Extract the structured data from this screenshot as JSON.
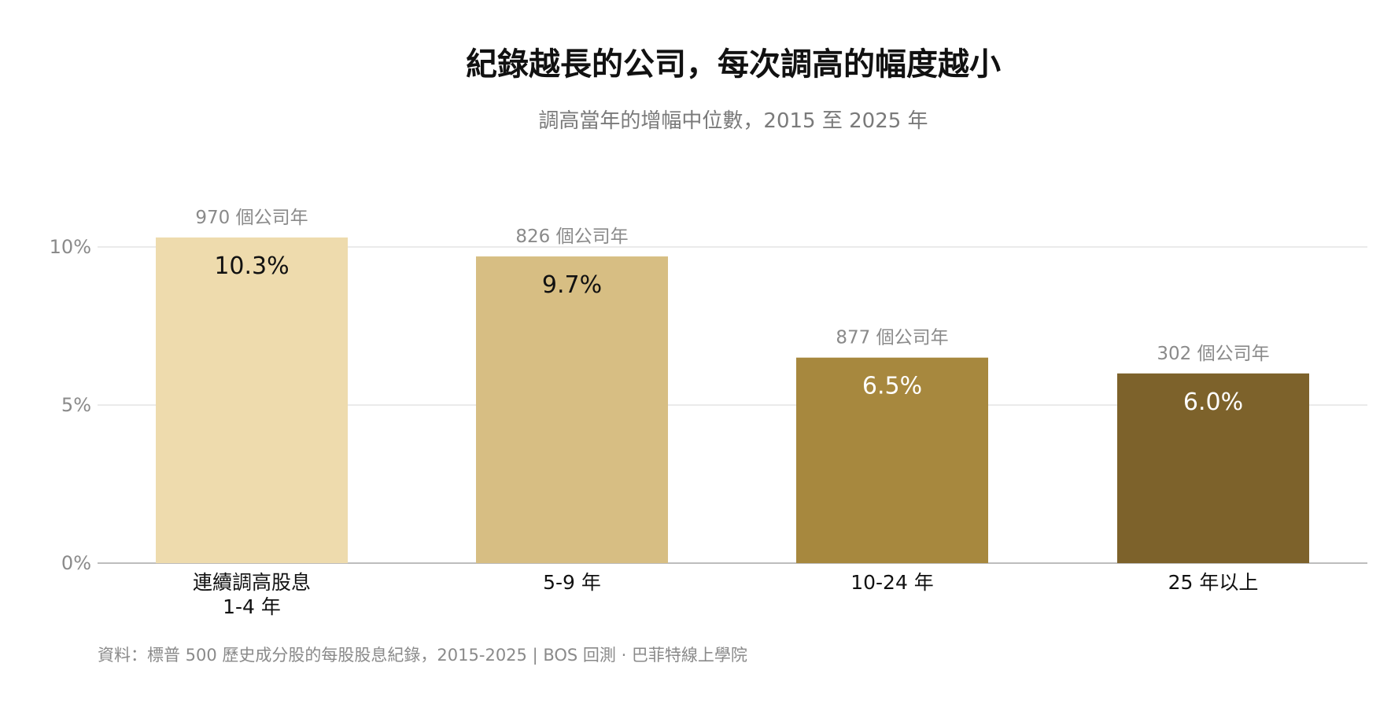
{
  "chart_data": {
    "type": "bar",
    "title": "紀錄越長的公司，每次調高的幅度越小",
    "subtitle": "調高當年的增幅中位數，2015 至 2025 年",
    "categories": [
      [
        "連續調高股息",
        "1-4 年"
      ],
      [
        "5-9 年"
      ],
      [
        "10-24 年"
      ],
      [
        "25 年以上"
      ]
    ],
    "values": [
      10.3,
      9.7,
      6.5,
      6.0
    ],
    "value_labels": [
      "10.3%",
      "9.7%",
      "6.5%",
      "6.0%"
    ],
    "count_labels": [
      "970 個公司年",
      "826 個公司年",
      "877 個公司年",
      "302 個公司年"
    ],
    "bar_colors": [
      "#EEDBAD",
      "#D7BE83",
      "#A7883E",
      "#7D622B"
    ],
    "value_label_colors": [
      "#111111",
      "#111111",
      "#ffffff",
      "#ffffff"
    ],
    "y_ticks": [
      0,
      5,
      10
    ],
    "y_tick_labels": [
      "0%",
      "5%",
      "10%"
    ],
    "ylim": [
      0,
      10
    ],
    "grid": true,
    "source": "資料：標普 500 歷史成分股的每股股息紀錄，2015-2025 | BOS 回測 ·   巴菲特線上學院"
  }
}
